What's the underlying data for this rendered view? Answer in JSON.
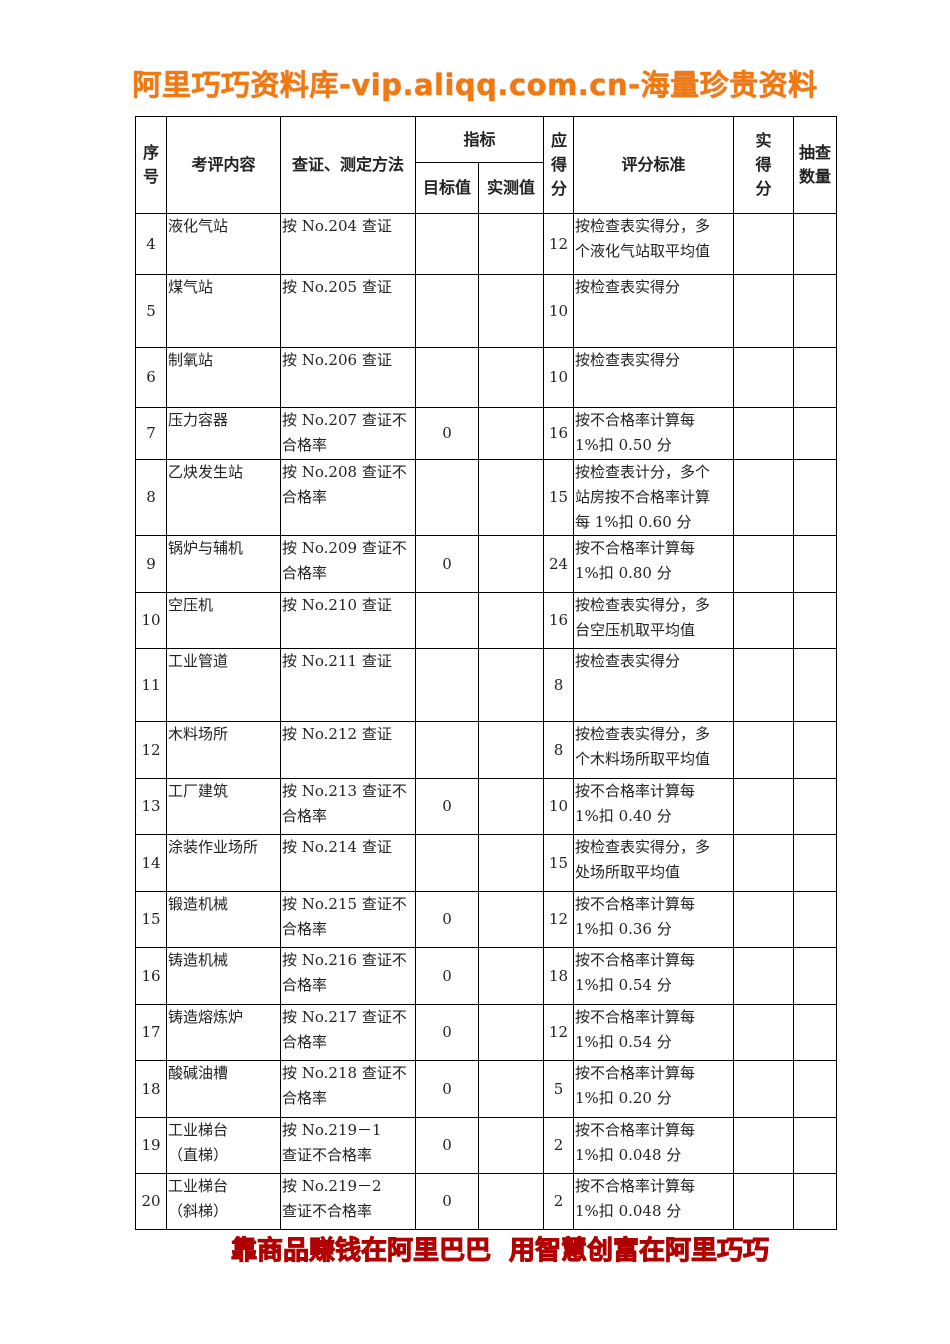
{
  "header": {
    "title": "阿里巧巧资料库-vip.aliqq.com.cn-海量珍贵资料"
  },
  "footer": {
    "text": "靠商品赚钱在阿里巴巴  用智慧创富在阿里巧巧"
  },
  "table": {
    "headers": {
      "no": "序号",
      "item": "考评内容",
      "method": "查证、测定方法",
      "indicator": "指标",
      "target": "目标值",
      "measured": "实测值",
      "score": "应得分",
      "standard": "评分标准",
      "actual": "实得分",
      "sample": "抽查数量"
    },
    "rows": [
      {
        "no": "4",
        "item": [
          "液化气站"
        ],
        "method": [
          "按 No.204 查证"
        ],
        "score": "12",
        "standard": [
          "按检查表实得分，多",
          "个液化气站取平均值"
        ]
      },
      {
        "no": "5",
        "item": [
          "煤气站"
        ],
        "method": [
          "按 No.205 查证"
        ],
        "score": "10",
        "standard": [
          "按检查表实得分"
        ]
      },
      {
        "no": "6",
        "item": [
          "制氧站"
        ],
        "method": [
          "按 No.206 查证"
        ],
        "score": "10",
        "standard": [
          "按检查表实得分"
        ]
      },
      {
        "no": "7",
        "item": [
          "压力容器"
        ],
        "method": [
          "按 No.207 查证不",
          "合格率"
        ],
        "target": "0",
        "score": "16",
        "standard": [
          "按不合格率计算每",
          "1%扣 0.50 分"
        ]
      },
      {
        "no": "8",
        "item": [
          "乙炔发生站"
        ],
        "method": [
          "按 No.208 查证不",
          "合格率"
        ],
        "score": "15",
        "standard": [
          "按检查表计分，多个",
          "站房按不合格率计算",
          "每 1%扣 0.60 分"
        ]
      },
      {
        "no": "9",
        "item": [
          "锅炉与辅机"
        ],
        "method": [
          "按 No.209 查证不",
          "合格率"
        ],
        "target": "0",
        "score": "24",
        "standard": [
          "按不合格率计算每",
          "1%扣 0.80 分"
        ]
      },
      {
        "no": "10",
        "item": [
          "空压机"
        ],
        "method": [
          "按 No.210 查证"
        ],
        "score": "16",
        "standard": [
          "按检查表实得分，多",
          "台空压机取平均值"
        ]
      },
      {
        "no": "11",
        "item": [
          "工业管道"
        ],
        "method": [
          "按 No.211 查证"
        ],
        "score": "8",
        "standard": [
          "按检查表实得分"
        ]
      },
      {
        "no": "12",
        "item": [
          "木料场所"
        ],
        "method": [
          "按 No.212 查证"
        ],
        "score": "8",
        "standard": [
          "按检查表实得分，多",
          "个木料场所取平均值"
        ]
      },
      {
        "no": "13",
        "item": [
          "工厂建筑"
        ],
        "method": [
          "按 No.213 查证不",
          "合格率"
        ],
        "target": "0",
        "score": "10",
        "standard": [
          "按不合格率计算每",
          "1%扣 0.40 分"
        ]
      },
      {
        "no": "14",
        "item": [
          "涂装作业场所"
        ],
        "method": [
          "按 No.214 查证"
        ],
        "score": "15",
        "standard": [
          "按检查表实得分，多",
          "处场所取平均值"
        ]
      },
      {
        "no": "15",
        "item": [
          "锻造机械"
        ],
        "method": [
          "按 No.215 查证不",
          "合格率"
        ],
        "target": "0",
        "score": "12",
        "standard": [
          "按不合格率计算每",
          "1%扣 0.36 分"
        ]
      },
      {
        "no": "16",
        "item": [
          "铸造机械"
        ],
        "method": [
          "按 No.216 查证不",
          "合格率"
        ],
        "target": "0",
        "score": "18",
        "standard": [
          "按不合格率计算每",
          "1%扣 0.54 分"
        ]
      },
      {
        "no": "17",
        "item": [
          "铸造熔炼炉"
        ],
        "method": [
          "按 No.217 查证不",
          "合格率"
        ],
        "target": "0",
        "score": "12",
        "standard": [
          "按不合格率计算每",
          "1%扣 0.54 分"
        ]
      },
      {
        "no": "18",
        "item": [
          "酸碱油槽"
        ],
        "method": [
          "按 No.218 查证不",
          "合格率"
        ],
        "target": "0",
        "score": "5",
        "standard": [
          "按不合格率计算每",
          "1%扣 0.20 分"
        ]
      },
      {
        "no": "19",
        "item": [
          "工业梯台",
          "（直梯）"
        ],
        "method": [
          "按 No.219－1",
          "查证不合格率"
        ],
        "target": "0",
        "score": "2",
        "standard": [
          "按不合格率计算每",
          "1%扣 0.048 分"
        ]
      },
      {
        "no": "20",
        "item": [
          "工业梯台",
          "（斜梯）"
        ],
        "method": [
          "按 No.219－2",
          "查证不合格率"
        ],
        "target": "0",
        "score": "2",
        "standard": [
          "按不合格率计算每",
          "1%扣 0.048 分"
        ]
      }
    ]
  }
}
